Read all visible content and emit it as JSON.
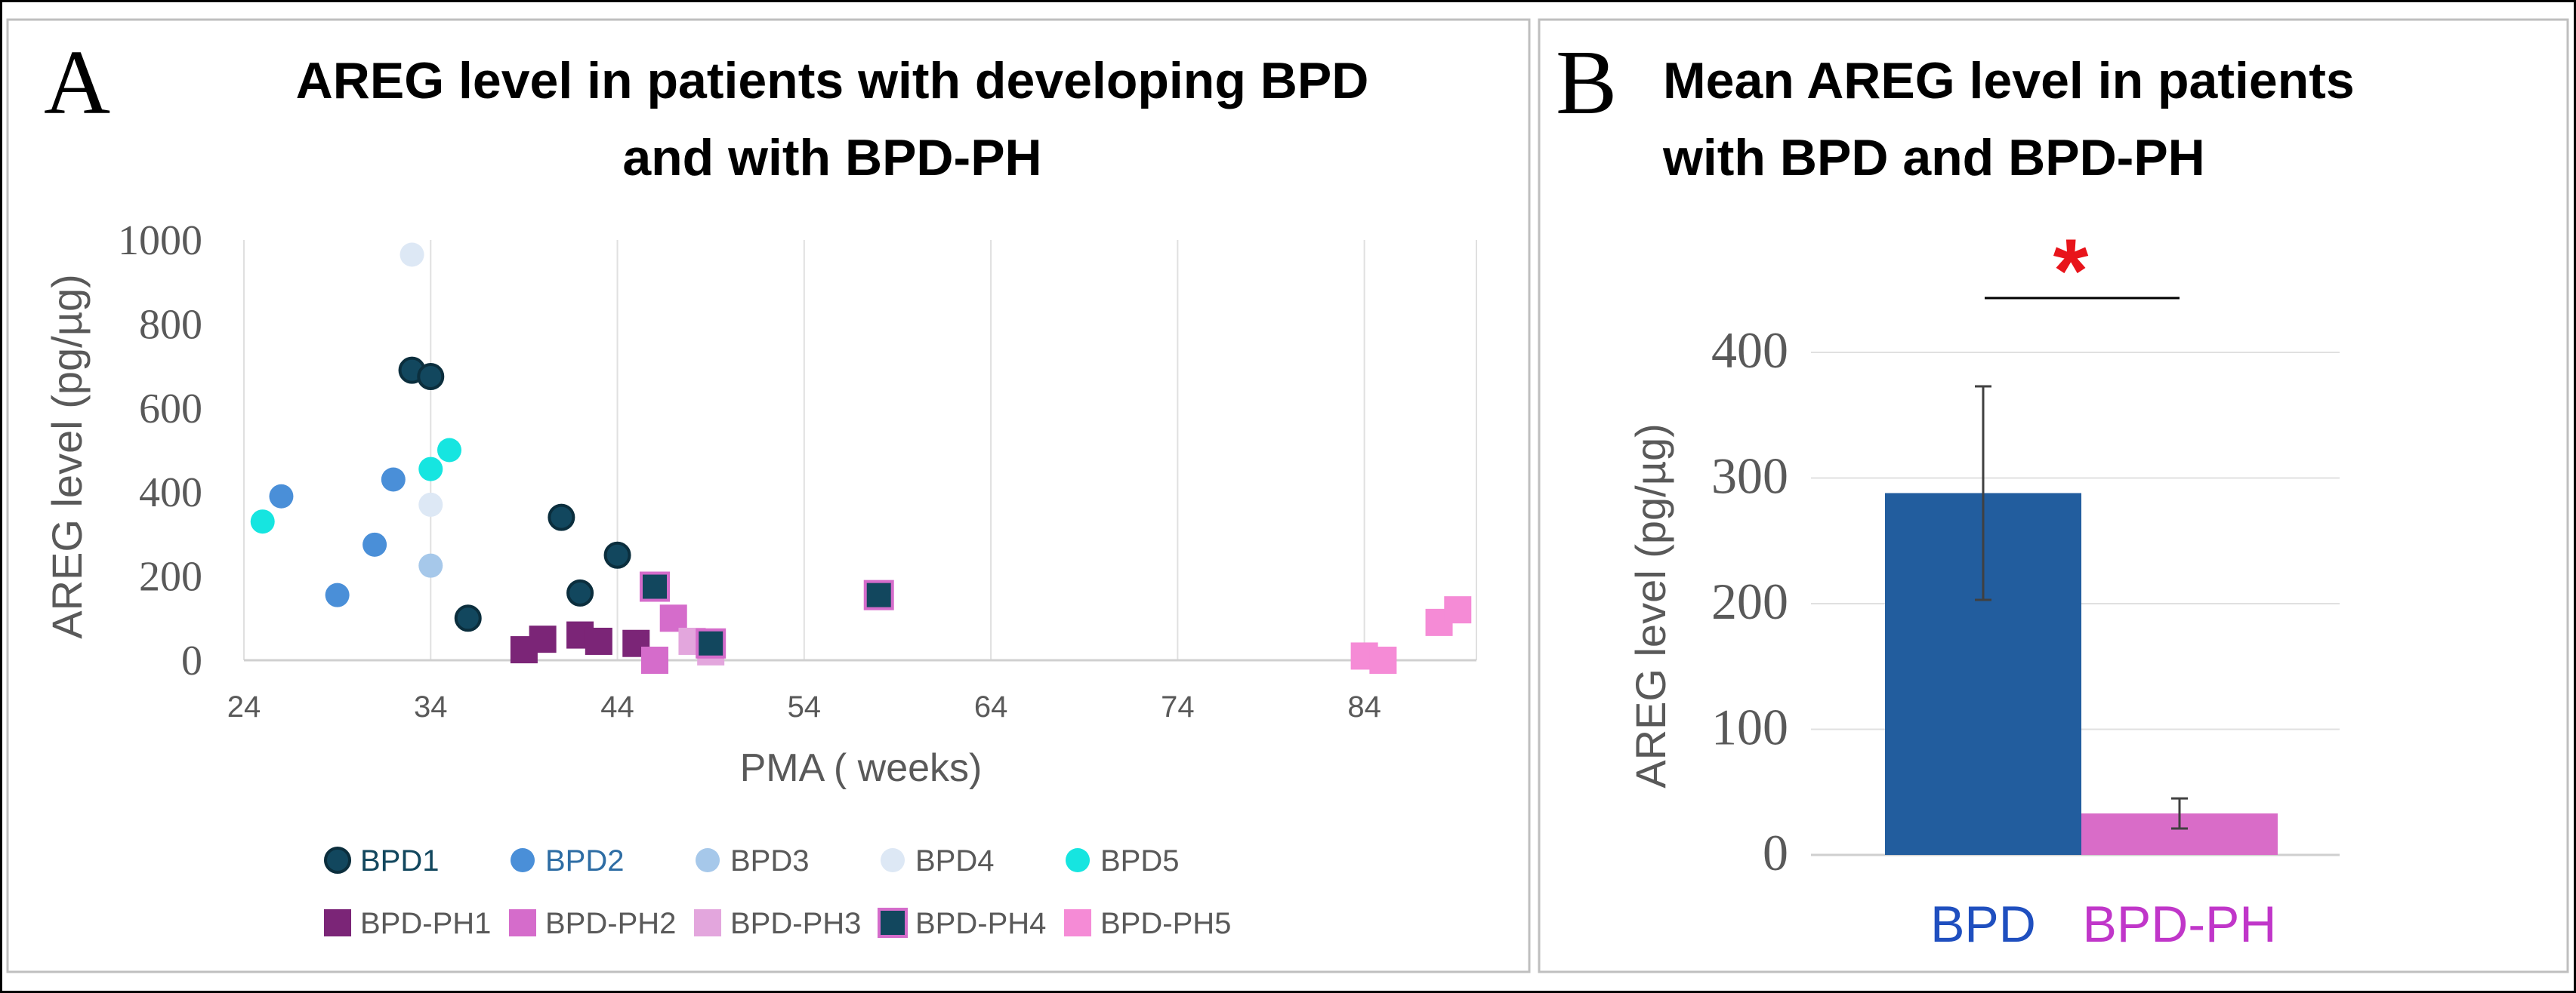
{
  "panels": {
    "a": {
      "letter": "A"
    },
    "b": {
      "letter": "B"
    }
  },
  "chart_data": [
    {
      "type": "scatter",
      "title": "AREG level in patients with developing BPD and with BPD-PH",
      "title_lines": [
        "AREG level in patients with developing BPD",
        "and with BPD-PH"
      ],
      "xlabel": "PMA ( weeks)",
      "ylabel": "AREG level (pg/µg)",
      "xlim": [
        24,
        90
      ],
      "ylim": [
        0,
        1000
      ],
      "xticks": [
        24,
        34,
        44,
        54,
        64,
        74,
        84
      ],
      "yticks": [
        0,
        200,
        400,
        600,
        800,
        1000
      ],
      "grid": "vertical",
      "legend_position": "bottom",
      "series": [
        {
          "name": "BPD1",
          "marker": "circle",
          "color": "#12475E",
          "legend_text_color": "#12475E",
          "x": [
            33,
            34,
            41,
            44,
            42,
            36
          ],
          "y": [
            690,
            675,
            340,
            250,
            160,
            100
          ]
        },
        {
          "name": "BPD2",
          "marker": "circle",
          "color": "#4A8FD8",
          "legend_text_color": "#2E6DA4",
          "x": [
            26,
            32,
            31,
            29
          ],
          "y": [
            390,
            430,
            275,
            155
          ]
        },
        {
          "name": "BPD3",
          "marker": "circle",
          "color": "#A6C8EA",
          "legend_text_color": "#595959",
          "x": [
            34
          ],
          "y": [
            225
          ]
        },
        {
          "name": "BPD4",
          "marker": "circle",
          "color": "#DDE8F5",
          "legend_text_color": "#595959",
          "x": [
            33,
            34
          ],
          "y": [
            965,
            370
          ]
        },
        {
          "name": "BPD5",
          "marker": "circle",
          "color": "#16E5E0",
          "legend_text_color": "#595959",
          "x": [
            25,
            35,
            34
          ],
          "y": [
            330,
            500,
            455
          ]
        },
        {
          "name": "BPD-PH1",
          "marker": "square",
          "color": "#7B2577",
          "legend_text_color": "#595959",
          "x": [
            39,
            40,
            42,
            43,
            45
          ],
          "y": [
            25,
            50,
            60,
            45,
            40
          ]
        },
        {
          "name": "BPD-PH2",
          "marker": "square",
          "color": "#D56CCB",
          "legend_text_color": "#595959",
          "x": [
            46,
            47
          ],
          "y": [
            0,
            100
          ]
        },
        {
          "name": "BPD-PH3",
          "marker": "square",
          "color": "#E3A6DD",
          "legend_text_color": "#595959",
          "x": [
            48,
            49
          ],
          "y": [
            45,
            20
          ]
        },
        {
          "name": "BPD-PH4",
          "marker": "square",
          "color": "#12475E",
          "edge": "#D56CCB",
          "legend_text_color": "#595959",
          "x": [
            46,
            58,
            49
          ],
          "y": [
            175,
            155,
            40
          ]
        },
        {
          "name": "BPD-PH5",
          "marker": "square",
          "color": "#F58BD6",
          "legend_text_color": "#595959",
          "x": [
            84,
            85,
            88,
            89
          ],
          "y": [
            10,
            0,
            90,
            120
          ]
        }
      ]
    },
    {
      "type": "bar",
      "title": "Mean AREG level in patients with BPD and BPD-PH",
      "title_lines": [
        "Mean AREG level in patients",
        "with BPD and BPD-PH"
      ],
      "ylabel": "AREG level (pg/µg)",
      "ylim": [
        0,
        420
      ],
      "yticks": [
        0,
        100,
        200,
        300,
        400
      ],
      "grid": "horizontal",
      "categories": [
        "BPD",
        "BPD-PH"
      ],
      "values": [
        288,
        33
      ],
      "error_low": [
        203,
        21
      ],
      "error_high": [
        373,
        45
      ],
      "colors": [
        "#225D9E",
        "#D96CC8"
      ],
      "category_colors": [
        "#1F4FBF",
        "#C036C9"
      ],
      "significance": {
        "label": "*",
        "color": "#E8141B"
      }
    }
  ]
}
